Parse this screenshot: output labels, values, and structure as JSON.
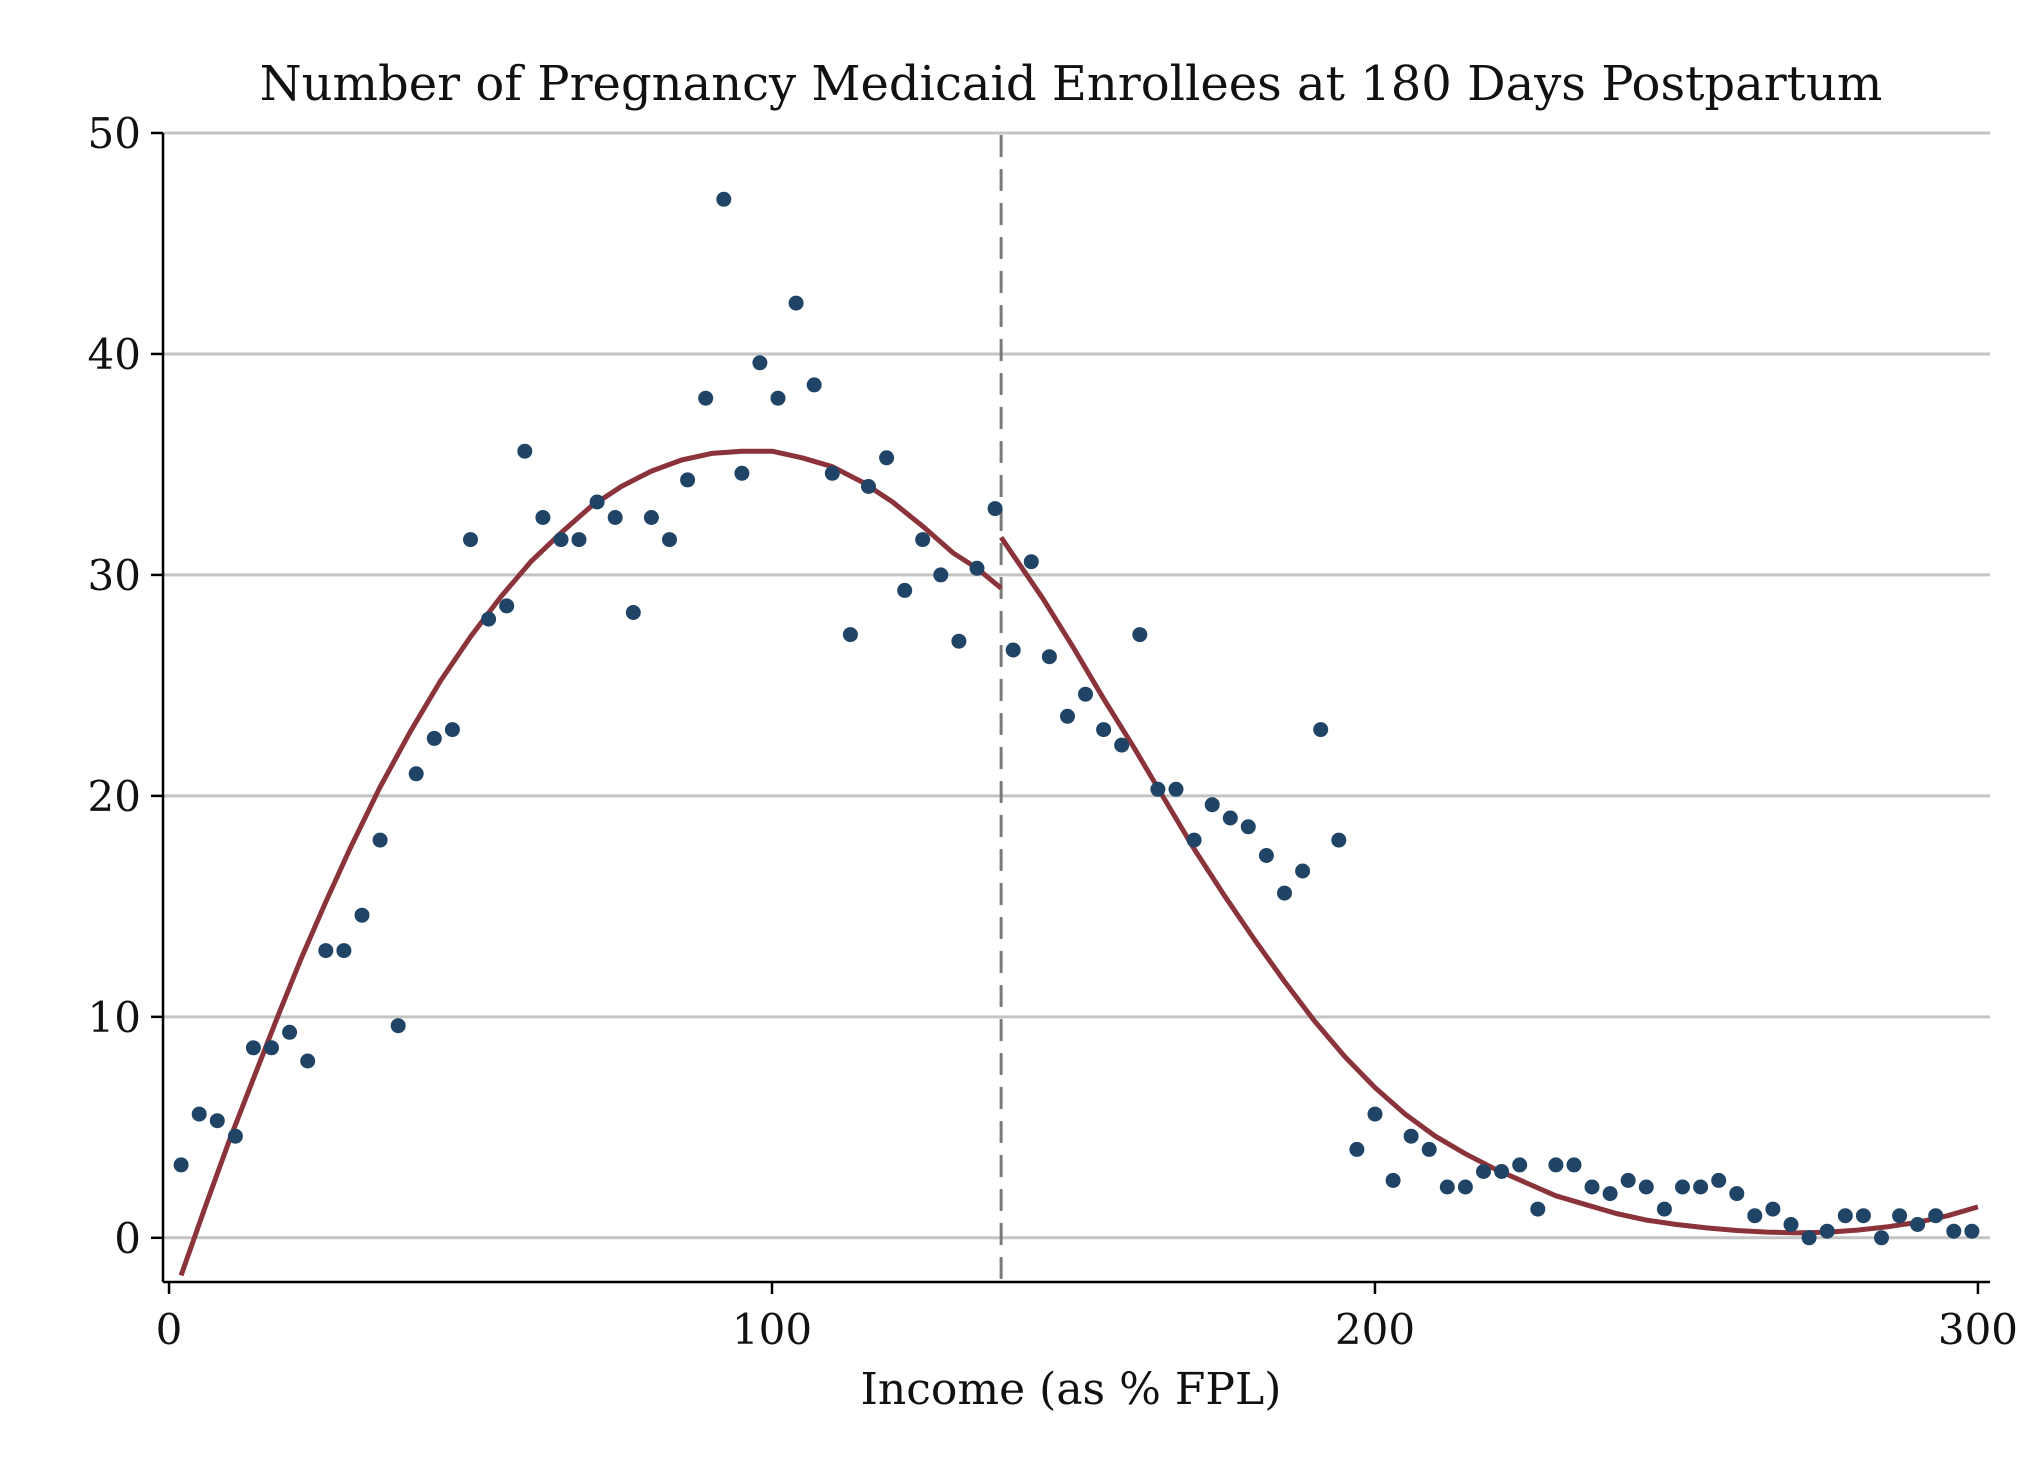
{
  "chart_data": {
    "type": "scatter",
    "title": "Number of Pregnancy Medicaid Enrollees at 180 Days Postpartum",
    "xlabel": "Income (as % FPL)",
    "ylabel": "",
    "xlim": [
      -1,
      302
    ],
    "ylim": [
      -2,
      50
    ],
    "xticks": [
      0,
      100,
      200,
      300
    ],
    "yticks": [
      0,
      10,
      20,
      30,
      40,
      50
    ],
    "grid": "horizontal",
    "cutoff_x": 138,
    "colors": {
      "points": "#1f4466",
      "fit": "#8b333a",
      "cutoff": "#7a7a7a",
      "grid": "#c4c4c4"
    },
    "series": [
      {
        "type": "scatter",
        "x": [
          2,
          5,
          8,
          11,
          14,
          17,
          20,
          23,
          26,
          29,
          32,
          35,
          38,
          41,
          44,
          47,
          50,
          53,
          56,
          59,
          62,
          65,
          68,
          71,
          74,
          77,
          80,
          83,
          86,
          89,
          92,
          95,
          98,
          101,
          104,
          107,
          110,
          113,
          116,
          119,
          122,
          125,
          128,
          131,
          134,
          137,
          140,
          143,
          146,
          149,
          152,
          155,
          158,
          161,
          164,
          167,
          170,
          173,
          176,
          179,
          182,
          185,
          188,
          191,
          194,
          197,
          200,
          203,
          206,
          209,
          212,
          215,
          218,
          221,
          224,
          227,
          230,
          233,
          236,
          239,
          242,
          245,
          248,
          251,
          254,
          257,
          260,
          263,
          266,
          269,
          272,
          275,
          278,
          281,
          284,
          287,
          290,
          293,
          296,
          299
        ],
        "y": [
          3.3,
          5.6,
          5.3,
          4.6,
          8.6,
          8.6,
          9.3,
          8.0,
          13.0,
          13.0,
          14.6,
          18.0,
          9.6,
          21.0,
          22.6,
          23.0,
          31.6,
          28.0,
          28.6,
          35.6,
          32.6,
          31.6,
          31.6,
          33.3,
          32.6,
          28.3,
          32.6,
          31.6,
          34.3,
          38.0,
          47.0,
          34.6,
          39.6,
          38.0,
          42.3,
          38.6,
          34.6,
          27.3,
          34.0,
          35.3,
          29.3,
          31.6,
          30.0,
          27.0,
          30.3,
          33.0,
          26.6,
          30.6,
          26.3,
          23.6,
          24.6,
          23.0,
          22.3,
          27.3,
          20.3,
          20.3,
          18.0,
          19.6,
          19.0,
          18.6,
          17.3,
          15.6,
          16.6,
          23.0,
          18.0,
          4.0,
          5.6,
          2.6,
          4.6,
          4.0,
          2.3,
          2.3,
          3.0,
          3.0,
          3.3,
          1.3,
          3.3,
          3.3,
          2.3,
          2.0,
          2.6,
          2.3,
          1.3,
          2.3,
          2.3,
          2.6,
          2.0,
          1.0,
          1.3,
          0.6,
          0.0,
          0.3,
          1.0,
          1.0,
          0.0,
          1.0,
          0.6,
          1.0,
          0.3,
          0.3
        ]
      },
      {
        "type": "line",
        "x": [
          2,
          6,
          10,
          14,
          18,
          22,
          26,
          30,
          35,
          40,
          45,
          50,
          55,
          60,
          65,
          70,
          75,
          80,
          85,
          90,
          95,
          100,
          105,
          110,
          115,
          120,
          125,
          130,
          134,
          138
        ],
        "y": [
          -1.7,
          1.4,
          4.4,
          7.2,
          10.0,
          12.7,
          15.2,
          17.6,
          20.4,
          22.9,
          25.2,
          27.2,
          29.0,
          30.6,
          31.9,
          33.1,
          34.0,
          34.7,
          35.2,
          35.5,
          35.6,
          35.6,
          35.3,
          34.9,
          34.2,
          33.3,
          32.2,
          31.0,
          30.3,
          29.4
        ]
      },
      {
        "type": "line",
        "x": [
          138,
          145,
          150,
          155,
          160,
          165,
          170,
          175,
          180,
          185,
          190,
          195,
          200,
          205,
          210,
          215,
          220,
          225,
          230,
          235,
          240,
          245,
          250,
          255,
          260,
          265,
          270,
          275,
          280,
          285,
          290,
          295,
          300
        ],
        "y": [
          31.7,
          28.9,
          26.7,
          24.4,
          22.2,
          19.9,
          17.6,
          15.5,
          13.5,
          11.6,
          9.8,
          8.2,
          6.8,
          5.6,
          4.6,
          3.8,
          3.1,
          2.5,
          1.9,
          1.5,
          1.1,
          0.8,
          0.6,
          0.45,
          0.33,
          0.26,
          0.22,
          0.25,
          0.35,
          0.5,
          0.7,
          1.0,
          1.4
        ]
      }
    ]
  }
}
